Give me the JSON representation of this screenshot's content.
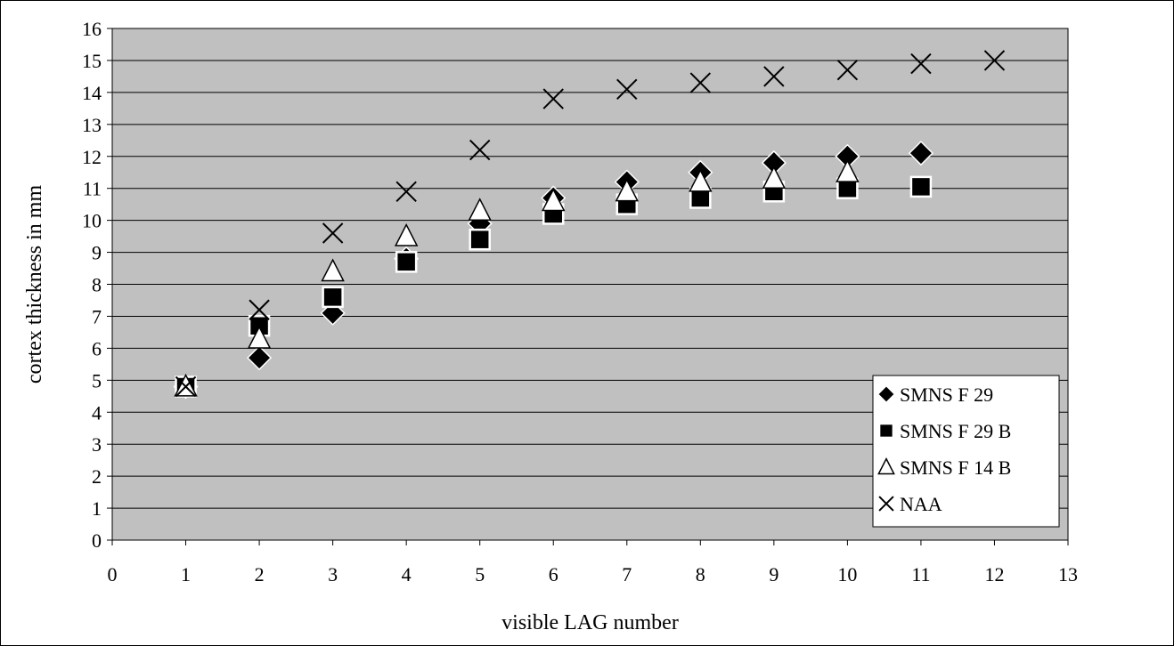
{
  "chart_data": {
    "type": "scatter",
    "xlabel": "visible LAG number",
    "ylabel": "cortex thickness in  mm",
    "xlim": [
      0,
      13
    ],
    "ylim": [
      0,
      16
    ],
    "x_ticks": [
      0,
      1,
      2,
      3,
      4,
      5,
      6,
      7,
      8,
      9,
      10,
      11,
      12,
      13
    ],
    "y_ticks": [
      0,
      1,
      2,
      3,
      4,
      5,
      6,
      7,
      8,
      9,
      10,
      11,
      12,
      13,
      14,
      15,
      16
    ],
    "grid": "horizontal",
    "plot_background": "#c0c0c0",
    "legend_position": "bottom-right",
    "series": [
      {
        "name": "SMNS F 29",
        "marker": "diamond-filled",
        "color": "#000000",
        "points": [
          [
            1,
            4.8
          ],
          [
            2,
            5.7
          ],
          [
            3,
            7.1
          ],
          [
            4,
            8.8
          ],
          [
            5,
            9.9
          ],
          [
            6,
            10.7
          ],
          [
            7,
            11.2
          ],
          [
            8,
            11.5
          ],
          [
            9,
            11.8
          ],
          [
            10,
            12.0
          ],
          [
            11,
            12.1
          ]
        ]
      },
      {
        "name": "SMNS F 29 B",
        "marker": "square-filled",
        "color": "#000000",
        "points": [
          [
            1,
            4.8
          ],
          [
            2,
            6.7
          ],
          [
            3,
            7.6
          ],
          [
            4,
            8.7
          ],
          [
            5,
            9.4
          ],
          [
            6,
            10.2
          ],
          [
            7,
            10.5
          ],
          [
            8,
            10.7
          ],
          [
            9,
            10.9
          ],
          [
            10,
            11.0
          ],
          [
            11,
            11.05
          ]
        ]
      },
      {
        "name": "SMNS F 14 B",
        "marker": "triangle-open",
        "color": "#000000",
        "points": [
          [
            1,
            4.8
          ],
          [
            2,
            6.3
          ],
          [
            3,
            8.4
          ],
          [
            4,
            9.5
          ],
          [
            5,
            10.3
          ],
          [
            6,
            10.6
          ],
          [
            7,
            10.9
          ],
          [
            8,
            11.2
          ],
          [
            9,
            11.3
          ],
          [
            10,
            11.5
          ]
        ]
      },
      {
        "name": "NAA",
        "marker": "x",
        "color": "#000000",
        "points": [
          [
            1,
            4.8
          ],
          [
            2,
            7.2
          ],
          [
            3,
            9.6
          ],
          [
            4,
            10.9
          ],
          [
            5,
            12.2
          ],
          [
            6,
            13.8
          ],
          [
            7,
            14.1
          ],
          [
            8,
            14.3
          ],
          [
            9,
            14.5
          ],
          [
            10,
            14.7
          ],
          [
            11,
            14.9
          ],
          [
            12,
            15.0
          ]
        ]
      }
    ]
  }
}
